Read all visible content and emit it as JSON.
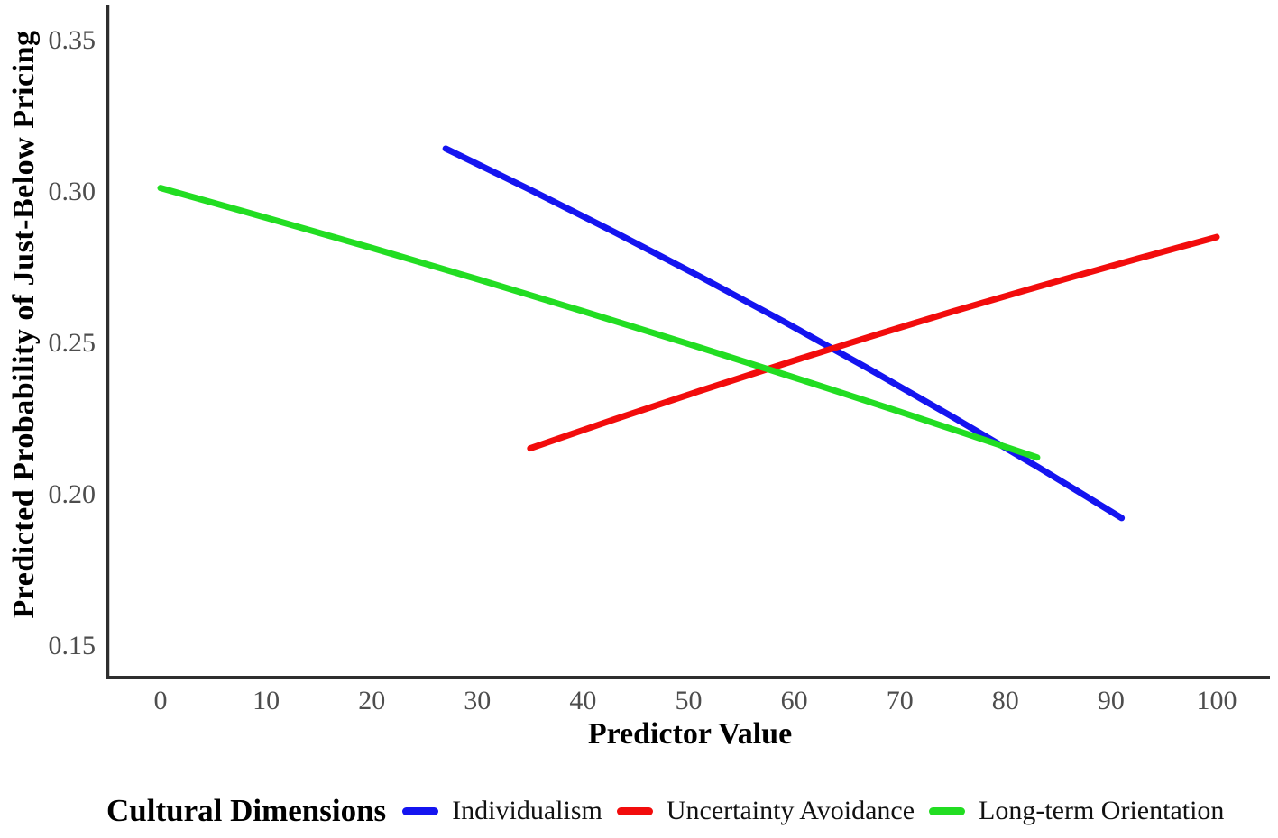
{
  "chart_data": {
    "type": "line",
    "title": "",
    "xlabel": "Predictor Value",
    "ylabel": "Predicted Probability of Just-Below Pricing",
    "x_ticks": [
      0,
      10,
      20,
      30,
      40,
      50,
      60,
      70,
      80,
      90,
      100
    ],
    "x_tick_labels": [
      "0",
      "10",
      "20",
      "30",
      "40",
      "50",
      "60",
      "70",
      "80",
      "90",
      "100"
    ],
    "y_ticks": [
      0.35,
      0.3,
      0.25,
      0.2,
      0.15
    ],
    "y_tick_labels": [
      "0.35",
      "0.30",
      "0.25",
      "0.20",
      "0.15"
    ],
    "xlim": [
      -5,
      105
    ],
    "ylim": [
      0.139,
      0.36
    ],
    "grid": false,
    "axis_color": "#2e2e2e",
    "tick_label_color": "#4d4d4d",
    "text_color": "#000000",
    "legend": {
      "title": "Cultural Dimensions",
      "position": "bottom"
    },
    "series": [
      {
        "name": "Individualism",
        "color": "#1414f0",
        "x": [
          27,
          35,
          43,
          51,
          59,
          67,
          75,
          83,
          91
        ],
        "y": [
          0.314,
          0.3004,
          0.2864,
          0.2719,
          0.2569,
          0.2414,
          0.2254,
          0.209,
          0.192
        ]
      },
      {
        "name": "Uncertainty Avoidance",
        "color": "#f20c0c",
        "x": [
          35,
          43,
          51,
          59,
          67,
          75,
          83,
          91,
          100
        ],
        "y": [
          0.215,
          0.2246,
          0.2339,
          0.2429,
          0.2517,
          0.2602,
          0.2683,
          0.2762,
          0.2848
        ]
      },
      {
        "name": "Long-term Orientation",
        "color": "#22dd22",
        "x": [
          0,
          10,
          20,
          30,
          40,
          50,
          60,
          70,
          83
        ],
        "y": [
          0.301,
          0.2912,
          0.2812,
          0.2709,
          0.2603,
          0.2495,
          0.2384,
          0.2271,
          0.212
        ]
      }
    ]
  }
}
